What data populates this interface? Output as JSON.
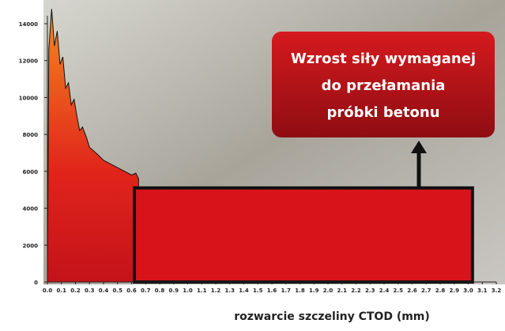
{
  "chart_data": {
    "type": "area",
    "xlabel": "rozwarcie szczeliny CTOD (mm)",
    "annotation": [
      "Wzrost siły wymaganej",
      "do przełamania",
      "próbki betonu"
    ],
    "xlim": [
      0,
      3.2
    ],
    "ylim": [
      0,
      14000
    ],
    "yticks": [
      0,
      2000,
      4000,
      6000,
      8000,
      10000,
      12000,
      14000
    ],
    "xticks": [
      {
        "value": 0,
        "label": "0.0"
      },
      0.1,
      0.2,
      0.3,
      0.4,
      0.5,
      0.6,
      0.7,
      0.8,
      0.9,
      {
        "value": 1,
        "label": "1.0"
      },
      1.1,
      1.2,
      1.3,
      1.4,
      1.5,
      1.6,
      1.7,
      1.8,
      1.9,
      {
        "value": 2,
        "label": "2.0"
      },
      2.1,
      2.2,
      2.3,
      2.4,
      2.5,
      2.6,
      2.7,
      2.8,
      2.9,
      {
        "value": 3,
        "label": "3.0"
      },
      3.1,
      3.2
    ],
    "series": [
      {
        "color": "#e0241b",
        "x": [
          0,
          0.01,
          0.03,
          0.05,
          0.07,
          0.09,
          0.11,
          0.13,
          0.15,
          0.17,
          0.19,
          0.21,
          0.23,
          0.25,
          0.28,
          0.3,
          0.33,
          0.36,
          0.4,
          0.45,
          0.5,
          0.55,
          0.6,
          0.63,
          0.65
        ],
        "values": [
          0,
          12600,
          14800,
          12800,
          13600,
          11800,
          12200,
          10500,
          10800,
          9600,
          9900,
          9000,
          8200,
          8400,
          7800,
          7300,
          7100,
          6900,
          6600,
          6400,
          6200,
          6000,
          5800,
          5900,
          5600
        ]
      },
      {
        "color": "#d8141a",
        "x": [
          0.62,
          3.03
        ],
        "values": [
          5100,
          5100
        ]
      }
    ]
  }
}
